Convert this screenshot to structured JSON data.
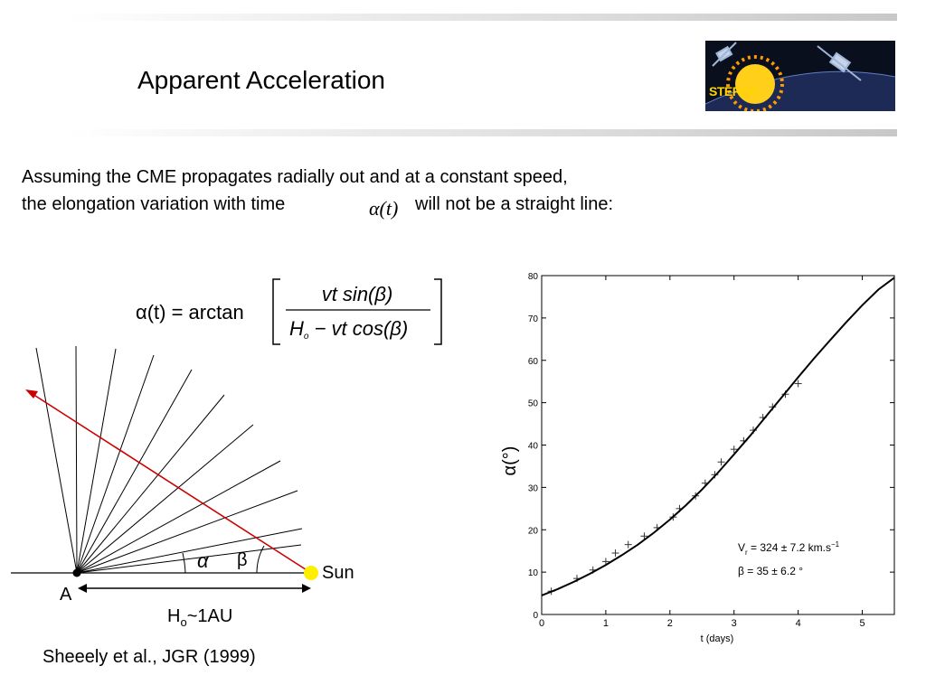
{
  "slide": {
    "title": "Apparent Acceleration",
    "paragraph_line1": "Assuming the CME propagates radially out and at a constant speed,",
    "paragraph_line2_a": "the elongation variation with time",
    "paragraph_line2_b": "will not be a straight line:",
    "inline_math": "α(t)",
    "citation": "Sheeely et al., JGR (1999)"
  },
  "logo": {
    "text": "STEREO"
  },
  "formula": {
    "lhs": "α(t) = arctan",
    "numerator": "vt sin(β)",
    "denominator_h": "H",
    "denominator_sub": "o",
    "denominator_rest": " − vt cos(β)"
  },
  "geometry": {
    "alpha_label": "α",
    "beta_label": "β",
    "sun_label": "Sun",
    "observer_label": "A",
    "distance_label_h": "H",
    "distance_label_sub": "o",
    "distance_label_rest": "~1AU",
    "colors": {
      "ray": "#cc0000",
      "sun": "#ffee00",
      "line": "#000000"
    }
  },
  "chart_data": {
    "type": "scatter",
    "xlabel": "t (days)",
    "ylabel": "α(°)",
    "xlim": [
      0,
      5.5
    ],
    "ylim": [
      0,
      80
    ],
    "xticks": [
      0,
      1,
      2,
      3,
      4,
      5
    ],
    "yticks": [
      0,
      10,
      20,
      30,
      40,
      50,
      60,
      70,
      80
    ],
    "grid": false,
    "series": [
      {
        "kind": "points",
        "marker": "plus",
        "x": [
          0.15,
          0.55,
          0.8,
          1.0,
          1.15,
          1.35,
          1.6,
          1.8,
          2.05,
          2.15,
          2.4,
          2.55,
          2.7,
          2.8,
          3.0,
          3.15,
          3.3,
          3.45,
          3.6,
          3.8,
          4.0
        ],
        "y": [
          5.5,
          8.5,
          10.5,
          12.5,
          14.5,
          16.5,
          18.5,
          20.5,
          23.0,
          25.0,
          28.0,
          31.0,
          33.0,
          36.0,
          39.0,
          41.0,
          43.5,
          46.5,
          49.0,
          52.0,
          54.5
        ]
      },
      {
        "kind": "line",
        "x": [
          0,
          0.25,
          0.5,
          0.75,
          1.0,
          1.25,
          1.5,
          1.75,
          2.0,
          2.25,
          2.5,
          2.75,
          3.0,
          3.25,
          3.5,
          3.75,
          4.0,
          4.25,
          4.5,
          4.75,
          5.0,
          5.25,
          5.5
        ],
        "y": [
          4.5,
          6.0,
          7.7,
          9.6,
          11.7,
          14.0,
          16.5,
          19.3,
          22.4,
          25.8,
          29.5,
          33.5,
          37.8,
          42.2,
          46.8,
          51.4,
          56.0,
          60.5,
          64.8,
          69.0,
          73.0,
          76.7,
          79.5
        ]
      }
    ],
    "annotation_line1_pre": "V",
    "annotation_line1_sub": "r",
    "annotation_line1_post": " = 324 ± 7.2 km.s",
    "annotation_line1_sup": "−1",
    "annotation_line2": "β =  35 ± 6.2 °"
  }
}
